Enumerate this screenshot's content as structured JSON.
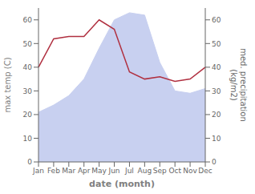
{
  "chart_data": {
    "type": "line",
    "xlabel": "date (month)",
    "ylabel": "max temp (C)",
    "y2label": "med. precipitation\n(kg/m2)",
    "categories": [
      "Jan",
      "Feb",
      "Mar",
      "Apr",
      "May",
      "Jun",
      "Jul",
      "Aug",
      "Sep",
      "Oct",
      "Nov",
      "Dec"
    ],
    "series": [
      {
        "type": "area",
        "axis": "y2",
        "color": "#c8d0f0",
        "values": [
          21,
          24,
          28,
          35,
          48,
          60,
          63,
          62,
          42,
          30,
          29,
          31
        ]
      },
      {
        "type": "line",
        "color": "#b03040",
        "values": [
          40,
          52,
          53,
          53,
          60,
          56,
          38,
          35,
          36,
          34,
          35,
          40
        ]
      }
    ],
    "ylim": [
      0,
      65
    ],
    "yticks": [
      0,
      10,
      20,
      30,
      40,
      50,
      60
    ],
    "y2lim": [
      0,
      65
    ],
    "y2ticks": [
      0,
      10,
      20,
      30,
      40,
      50,
      60
    ],
    "grid": false
  }
}
